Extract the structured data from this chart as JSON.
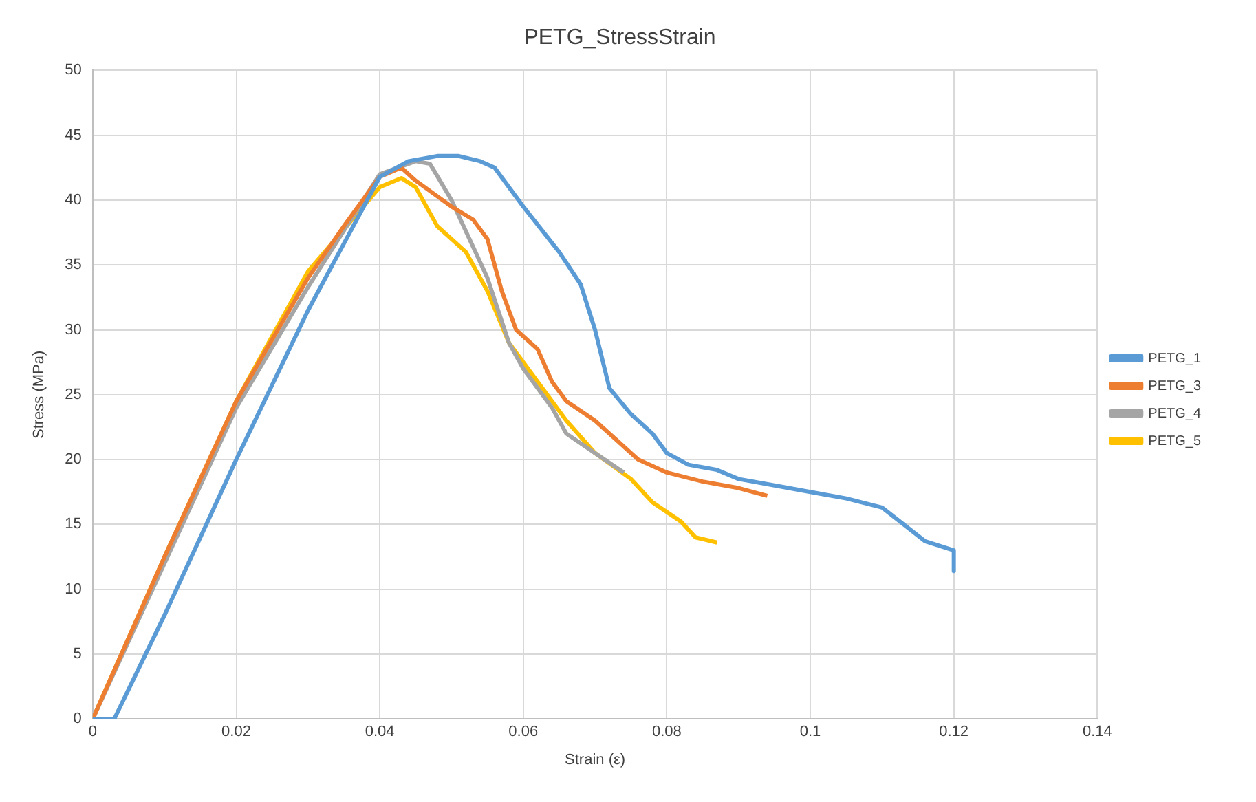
{
  "chart_data": {
    "type": "line",
    "title": "PETG_StressStrain",
    "xlabel": "Strain (ε)",
    "ylabel": "Stress (MPa)",
    "xlim": [
      0,
      0.14
    ],
    "xticks": [
      {
        "value": 0,
        "label": "0"
      },
      0.02,
      0.04,
      0.06,
      0.08,
      0.1,
      0.12,
      0.14
    ],
    "ylim": [
      0,
      50
    ],
    "yticks": [
      0,
      5,
      10,
      15,
      20,
      25,
      30,
      35,
      40,
      45,
      50
    ],
    "grid": true,
    "legend": "right",
    "marker": "none",
    "line_style": "solid",
    "series": [
      {
        "name": "PETG_1",
        "color": "#5b9bd5",
        "x": [
          0,
          0.003,
          0.01,
          0.02,
          0.03,
          0.04,
          0.044,
          0.048,
          0.051,
          0.054,
          0.056,
          0.06,
          0.065,
          0.068,
          0.07,
          0.072,
          0.075,
          0.078,
          0.08,
          0.083,
          0.087,
          0.09,
          0.095,
          0.1,
          0.105,
          0.11,
          0.113,
          0.116,
          0.12,
          0.12
        ],
        "values": [
          0,
          0,
          8,
          20,
          31.5,
          41.8,
          43,
          43.4,
          43.4,
          43,
          42.5,
          39.5,
          36,
          33.5,
          30,
          25.5,
          23.5,
          22,
          20.5,
          19.6,
          19.2,
          18.5,
          18,
          17.5,
          17,
          16.3,
          15,
          13.7,
          13,
          11.4
        ]
      },
      {
        "name": "PETG_3",
        "color": "#ed7d31",
        "x": [
          0,
          0.01,
          0.02,
          0.03,
          0.035,
          0.04,
          0.043,
          0.045,
          0.05,
          0.053,
          0.055,
          0.057,
          0.059,
          0.062,
          0.064,
          0.066,
          0.07,
          0.073,
          0.076,
          0.08,
          0.085,
          0.09,
          0.094
        ],
        "values": [
          0,
          12.5,
          24.5,
          34,
          38,
          41.8,
          42.5,
          41.5,
          39.5,
          38.5,
          37,
          33,
          30,
          28.5,
          26,
          24.5,
          23,
          21.5,
          20,
          19,
          18.3,
          17.8,
          17.2
        ]
      },
      {
        "name": "PETG_4",
        "color": "#a5a5a5",
        "x": [
          0,
          0.01,
          0.02,
          0.03,
          0.04,
          0.045,
          0.047,
          0.05,
          0.055,
          0.058,
          0.06,
          0.064,
          0.066,
          0.07,
          0.074
        ],
        "values": [
          0,
          12,
          24,
          33.3,
          42,
          43,
          42.8,
          40,
          34,
          29,
          27,
          24,
          22,
          20.5,
          19
        ]
      },
      {
        "name": "PETG_5",
        "color": "#ffc000",
        "x": [
          0,
          0.01,
          0.02,
          0.03,
          0.04,
          0.043,
          0.045,
          0.048,
          0.052,
          0.055,
          0.058,
          0.062,
          0.066,
          0.07,
          0.075,
          0.078,
          0.082,
          0.084,
          0.087
        ],
        "values": [
          0,
          12.5,
          24.5,
          34.5,
          41,
          41.7,
          41,
          38,
          36,
          33,
          29,
          26,
          23,
          20.5,
          18.5,
          16.7,
          15.2,
          14,
          13.6
        ]
      }
    ]
  }
}
